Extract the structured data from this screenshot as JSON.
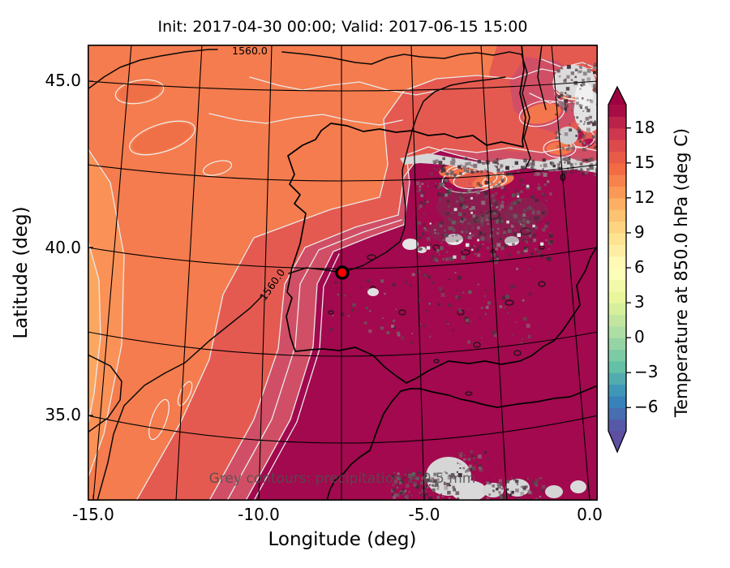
{
  "figure": {
    "title": "Init: 2017-04-30 00:00; Valid: 2017-06-15 15:00",
    "xlabel": "Longitude (deg)",
    "ylabel": "Latitude (deg)",
    "annotation": "Grey contours: precipitation ≥ 0.5 mm",
    "contour_label": "1560.0",
    "contour_label_partial": "0",
    "marker_color": "#ff0000"
  },
  "axes": {
    "x_tick_labels": [
      "-15.0",
      "-10.0",
      "-5.0",
      "0.0"
    ],
    "x_tick_values": [
      -15,
      -10,
      -5,
      0
    ],
    "y_tick_labels": [
      "45.0",
      "40.0",
      "35.0"
    ],
    "y_tick_values": [
      45,
      40,
      35
    ]
  },
  "colorbar": {
    "label": "Temperature at 850.0 hPa (deg C)",
    "tick_labels": [
      "18",
      "15",
      "12",
      "9",
      "6",
      "3",
      "0",
      "−3",
      "−6"
    ],
    "tick_values": [
      18,
      15,
      12,
      9,
      6,
      3,
      0,
      -3,
      -6
    ],
    "vmin": -8,
    "vmax": 20,
    "step": 1,
    "extend": "both",
    "colormap": "Spectral_r",
    "stops": [
      "#5e4fa2",
      "#3288bd",
      "#66c2a5",
      "#abdda4",
      "#e6f598",
      "#ffffbf",
      "#fee08b",
      "#fdae61",
      "#f46d43",
      "#d53e4f",
      "#9e0142"
    ]
  },
  "chart_data": {
    "type": "heatmap",
    "title": "Init: 2017-04-30 00:00; Valid: 2017-06-15 15:00",
    "xlabel": "Longitude (deg)",
    "ylabel": "Latitude (deg)",
    "x_ticks": [
      -15.0,
      -10.0,
      -5.0,
      0.0
    ],
    "y_ticks": [
      45.0,
      40.0,
      35.0
    ],
    "xlim": [
      -15.2,
      0.25
    ],
    "ylim": [
      32.4,
      46.3
    ],
    "graticule_interval_deg": 2.5,
    "colorbar": {
      "label": "Temperature at 850.0 hPa (deg C)",
      "ticks": [
        18,
        15,
        12,
        9,
        6,
        3,
        0,
        -3,
        -6
      ],
      "vmin": -8,
      "vmax": 20,
      "colormap": "Spectral_r",
      "extend": "both"
    },
    "field_regions": [
      {
        "region": "Iberian Peninsula interior, Mediterranean and North Africa",
        "approx_temp_degC": 19
      },
      {
        "region": "Atlantic northwest corner of map",
        "approx_temp_degC": 12.5
      },
      {
        "region": "Bay of Biscay and western France",
        "approx_temp_degC": 14.5
      },
      {
        "region": "Cantabrian coast cool pocket",
        "approx_temp_degC": 13.5
      }
    ],
    "geopotential_contour_label": "1560.0",
    "precipitation_annotation": "Grey contours: precipitation ≥ 0.5 mm",
    "precipitation_areas": [
      "Pyrenees / northern Spain coastal band",
      "northeastern Spain speckled cluster",
      "Alps corner (top right)",
      "western Mediterranean near the African coast (bottom centre)"
    ],
    "marker_point": {
      "lon": -7.5,
      "lat": 39.3
    }
  }
}
